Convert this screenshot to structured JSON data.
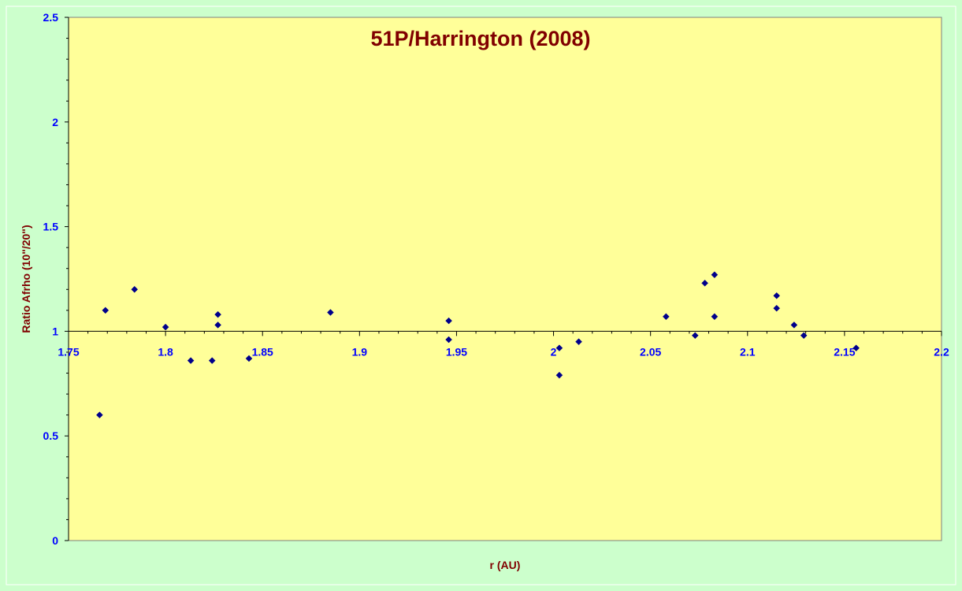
{
  "chart_data": {
    "type": "scatter",
    "title": "51P/Harrington (2008)",
    "xlabel": "r (AU)",
    "ylabel": "Ratio Afrho (10\"/20\")",
    "xlim": [
      1.75,
      2.2
    ],
    "ylim": [
      0,
      2.5
    ],
    "x_ticks": [
      "1.75",
      "1.8",
      "1.85",
      "1.9",
      "1.95",
      "2",
      "2.05",
      "2.1",
      "2.15",
      "2.2"
    ],
    "y_ticks": [
      "0",
      "0.5",
      "1",
      "1.5",
      "2",
      "2.5"
    ],
    "x_axis_crosses_y": 1,
    "grid": false,
    "legend": "none",
    "colors": {
      "plot_area": "#ffff99",
      "chart_area": "#ccffcc",
      "marker": "#00008b",
      "tick_labels": "#0000ff",
      "titles": "#800000"
    },
    "series": [
      {
        "points": [
          [
            1.766,
            0.6
          ],
          [
            1.769,
            1.1
          ],
          [
            1.784,
            1.2
          ],
          [
            1.8,
            1.02
          ],
          [
            1.813,
            0.86
          ],
          [
            1.824,
            0.86
          ],
          [
            1.827,
            1.08
          ],
          [
            1.827,
            1.03
          ],
          [
            1.843,
            0.87
          ],
          [
            1.885,
            1.09
          ],
          [
            1.946,
            1.05
          ],
          [
            1.946,
            0.96
          ],
          [
            2.003,
            0.92
          ],
          [
            2.003,
            0.79
          ],
          [
            2.013,
            0.95
          ],
          [
            2.058,
            1.07
          ],
          [
            2.073,
            0.98
          ],
          [
            2.078,
            1.23
          ],
          [
            2.083,
            1.27
          ],
          [
            2.083,
            1.07
          ],
          [
            2.115,
            1.17
          ],
          [
            2.115,
            1.11
          ],
          [
            2.124,
            1.03
          ],
          [
            2.129,
            0.98
          ],
          [
            2.156,
            0.92
          ]
        ]
      }
    ]
  }
}
